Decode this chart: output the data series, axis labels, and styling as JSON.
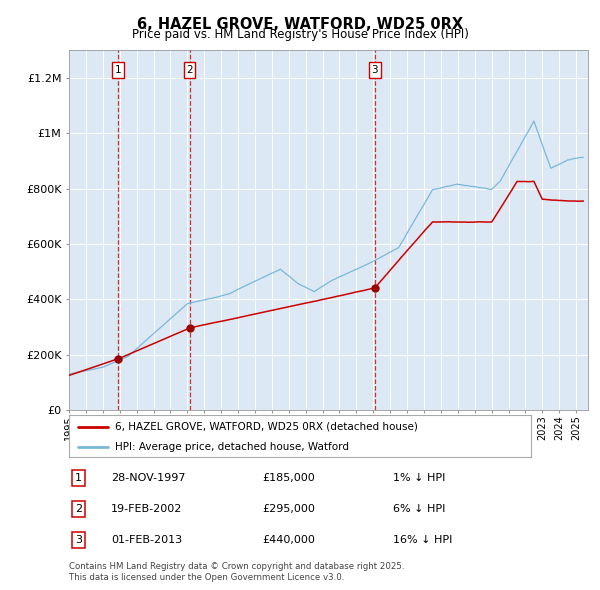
{
  "title": "6, HAZEL GROVE, WATFORD, WD25 0RX",
  "subtitle": "Price paid vs. HM Land Registry's House Price Index (HPI)",
  "background_color": "#dce9f5",
  "plot_bg_color": "#dce9f5",
  "grid_color": "#ffffff",
  "hpi_color": "#7ab8d9",
  "price_color": "#cc0000",
  "sale_marker_color": "#990000",
  "vline_color": "#cc0000",
  "ylim": [
    0,
    1300000
  ],
  "yticks": [
    0,
    200000,
    400000,
    600000,
    800000,
    1000000,
    1200000
  ],
  "ytick_labels": [
    "£0",
    "£200K",
    "£400K",
    "£600K",
    "£800K",
    "£1M",
    "£1.2M"
  ],
  "sales": [
    {
      "label": "1",
      "date": "28-NOV-1997",
      "price": 185000,
      "pct": "1%",
      "direction": "↓"
    },
    {
      "label": "2",
      "date": "19-FEB-2002",
      "price": 295000,
      "pct": "6%",
      "direction": "↓"
    },
    {
      "label": "3",
      "date": "01-FEB-2013",
      "price": 440000,
      "pct": "16%",
      "direction": "↓"
    }
  ],
  "sale_years": [
    1997.91,
    2002.13,
    2013.09
  ],
  "sale_prices": [
    185000,
    295000,
    440000
  ],
  "legend_label_price": "6, HAZEL GROVE, WATFORD, WD25 0RX (detached house)",
  "legend_label_hpi": "HPI: Average price, detached house, Watford",
  "footer": "Contains HM Land Registry data © Crown copyright and database right 2025.\nThis data is licensed under the Open Government Licence v3.0."
}
